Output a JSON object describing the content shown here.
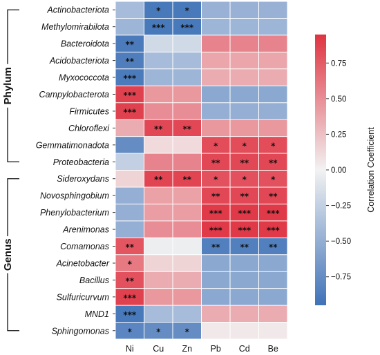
{
  "chart_data": {
    "type": "heatmap",
    "rows": [
      "Actinobacteriota",
      "Methylomirabilota",
      "Bacteroidota",
      "Acidobacteriota",
      "Myxococcota",
      "Campylobacterota",
      "Firmicutes",
      "Chloroflexi",
      "Gemmatimonadota",
      "Proteobacteria",
      "Sideroxydans",
      "Novosphingobium",
      "Phenylobacterium",
      "Arenimonas",
      "Comamonas",
      "Acinetobacter",
      "Bacillus",
      "Sulfuricurvum",
      "MND1",
      "Sphingomonas"
    ],
    "columns": [
      "Ni",
      "Cu",
      "Zn",
      "Pb",
      "Cd",
      "Be"
    ],
    "values": [
      [
        -0.4,
        -0.9,
        -0.9,
        -0.48,
        -0.48,
        -0.48
      ],
      [
        -0.45,
        -0.9,
        -0.9,
        -0.45,
        -0.45,
        -0.45
      ],
      [
        -0.88,
        -0.18,
        -0.18,
        0.55,
        0.55,
        0.55
      ],
      [
        -0.86,
        -0.4,
        -0.4,
        0.38,
        0.38,
        0.38
      ],
      [
        -0.88,
        -0.45,
        -0.45,
        0.35,
        0.35,
        0.35
      ],
      [
        0.88,
        0.45,
        0.45,
        -0.55,
        -0.55,
        -0.55
      ],
      [
        0.88,
        0.5,
        0.5,
        -0.5,
        -0.5,
        -0.5
      ],
      [
        0.35,
        0.85,
        0.85,
        0.45,
        0.45,
        0.45
      ],
      [
        -0.75,
        0.12,
        0.12,
        0.82,
        0.82,
        0.82
      ],
      [
        -0.25,
        0.55,
        0.55,
        0.85,
        0.85,
        0.85
      ],
      [
        0.15,
        0.86,
        0.86,
        0.8,
        0.8,
        0.8
      ],
      [
        -0.5,
        0.4,
        0.4,
        0.85,
        0.85,
        0.85
      ],
      [
        -0.5,
        0.42,
        0.42,
        0.92,
        0.92,
        0.92
      ],
      [
        -0.5,
        0.5,
        0.5,
        0.92,
        0.92,
        0.92
      ],
      [
        0.78,
        -0.03,
        -0.03,
        -0.85,
        -0.85,
        -0.85
      ],
      [
        0.6,
        0.15,
        0.15,
        -0.55,
        -0.55,
        -0.55
      ],
      [
        0.8,
        0.35,
        0.35,
        -0.55,
        -0.55,
        -0.55
      ],
      [
        0.88,
        0.45,
        0.45,
        -0.55,
        -0.55,
        -0.55
      ],
      [
        -0.9,
        -0.4,
        -0.4,
        0.35,
        0.35,
        0.35
      ],
      [
        -0.8,
        -0.75,
        -0.75,
        0.05,
        0.05,
        0.05
      ]
    ],
    "significance": [
      [
        "",
        "*",
        "*",
        "",
        "",
        ""
      ],
      [
        "",
        "***",
        "***",
        "",
        "",
        ""
      ],
      [
        "**",
        "",
        "",
        "",
        "",
        ""
      ],
      [
        "**",
        "",
        "",
        "",
        "",
        ""
      ],
      [
        "***",
        "",
        "",
        "",
        "",
        ""
      ],
      [
        "***",
        "",
        "",
        "",
        "",
        ""
      ],
      [
        "***",
        "",
        "",
        "",
        "",
        ""
      ],
      [
        "",
        "**",
        "**",
        "",
        "",
        ""
      ],
      [
        "",
        "",
        "",
        "*",
        "*",
        "*"
      ],
      [
        "",
        "",
        "",
        "**",
        "**",
        "**"
      ],
      [
        "",
        "**",
        "**",
        "*",
        "*",
        "*"
      ],
      [
        "",
        "",
        "",
        "**",
        "**",
        "**"
      ],
      [
        "",
        "",
        "",
        "***",
        "***",
        "***"
      ],
      [
        "",
        "",
        "",
        "***",
        "***",
        "***"
      ],
      [
        "**",
        "",
        "",
        "**",
        "**",
        "**"
      ],
      [
        "*",
        "",
        "",
        "",
        "",
        ""
      ],
      [
        "**",
        "",
        "",
        "",
        "",
        ""
      ],
      [
        "***",
        "",
        "",
        "",
        "",
        ""
      ],
      [
        "***",
        "",
        "",
        "",
        "",
        ""
      ],
      [
        "*",
        "*",
        "*",
        "",
        "",
        ""
      ]
    ],
    "groups": [
      {
        "label": "Phylum",
        "from": 0,
        "to": 9
      },
      {
        "label": "Genus",
        "from": 10,
        "to": 19
      }
    ],
    "colorbar": {
      "title": "Correlation Coefficient",
      "range": [
        -0.95,
        0.95
      ],
      "ticks": [
        0.75,
        0.5,
        0.25,
        0.0,
        -0.25,
        -0.5,
        -0.75
      ],
      "tick_labels": [
        "0.75",
        "0.50",
        "0.25",
        "0.00",
        "−0.25",
        "−0.50",
        "−0.75"
      ],
      "colors": {
        "low": "#3f72b8",
        "mid": "#f2f2f2",
        "high": "#df3341"
      }
    }
  }
}
